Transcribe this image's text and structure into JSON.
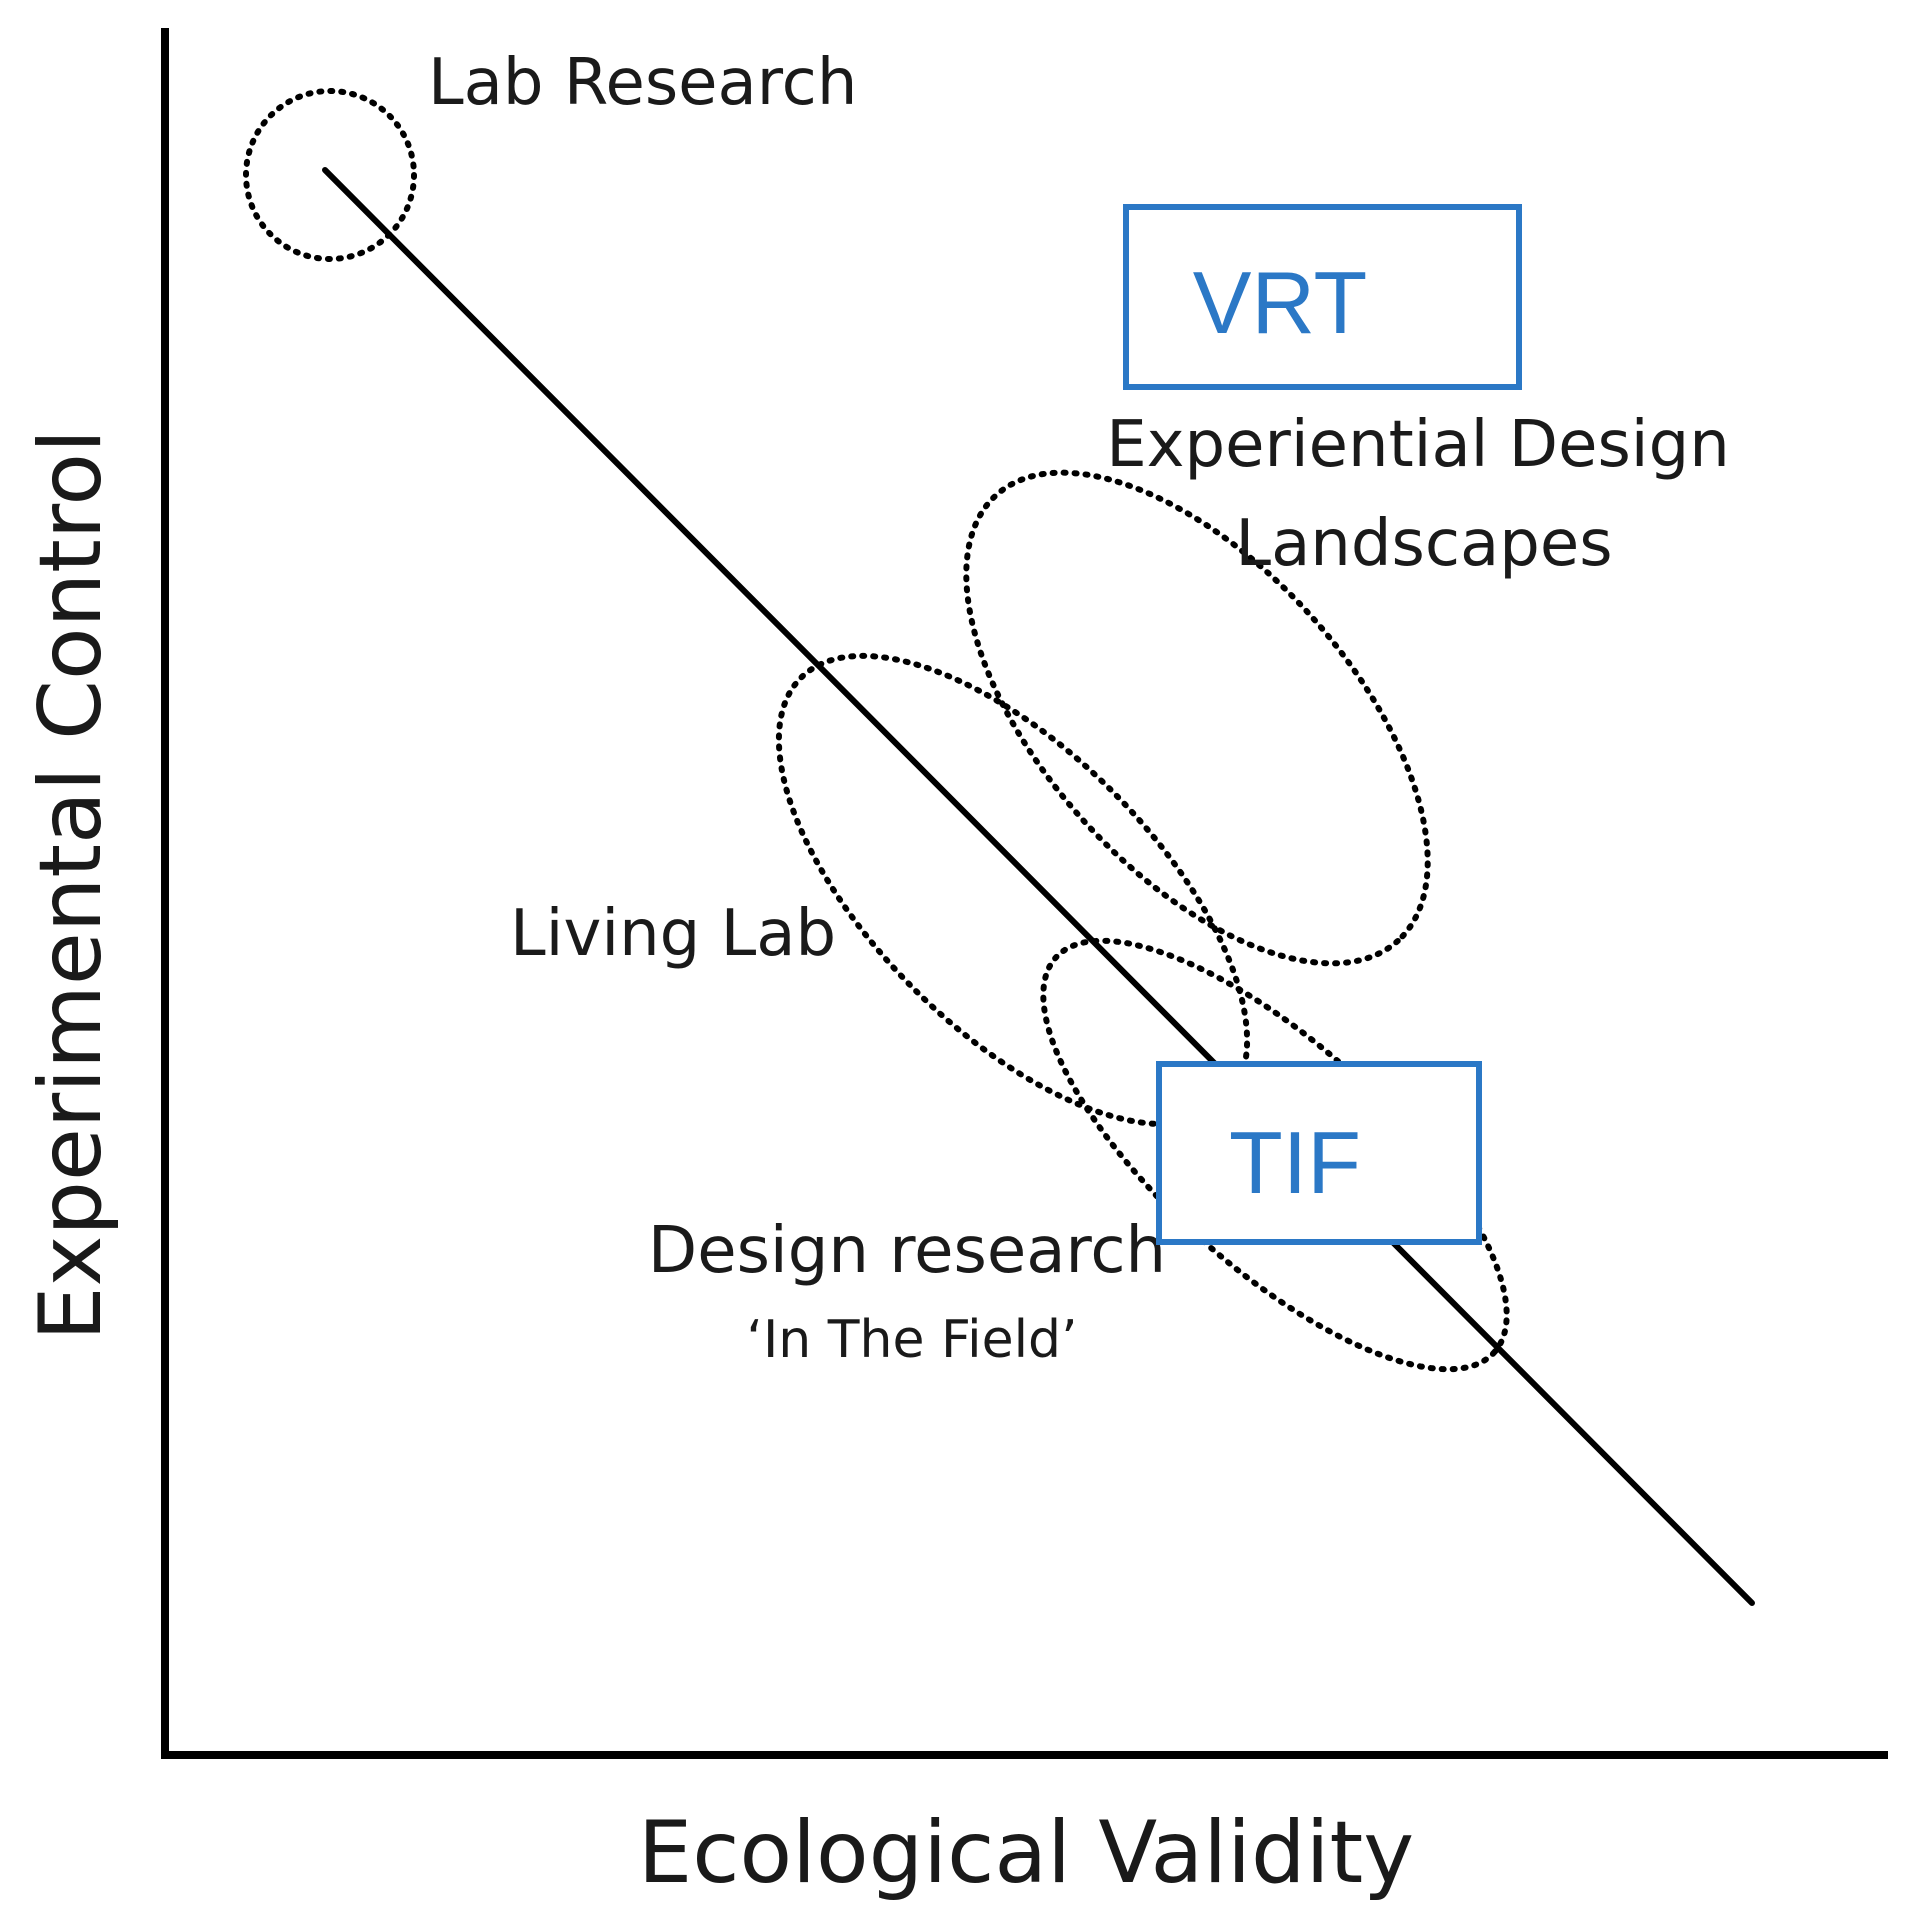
{
  "diagram": {
    "axes": {
      "x_label": "Ecological Validity",
      "y_label": "Experimental Control"
    },
    "regions": [
      {
        "id": "lab-research",
        "label": "Lab Research"
      },
      {
        "id": "experiential-design-landscapes",
        "label_line1": "Experiential Design",
        "label_line2": "Landscapes"
      },
      {
        "id": "living-lab",
        "label": "Living Lab"
      },
      {
        "id": "design-research",
        "label_line1": "Design research",
        "label_line2": "‘In The Field’"
      }
    ],
    "boxes": [
      {
        "id": "vrt",
        "label": "VRT"
      },
      {
        "id": "tif",
        "label": "TIF"
      }
    ],
    "colors": {
      "line": "#000000",
      "text": "#1a1a1a",
      "box_accent": "#2b78c6"
    }
  }
}
